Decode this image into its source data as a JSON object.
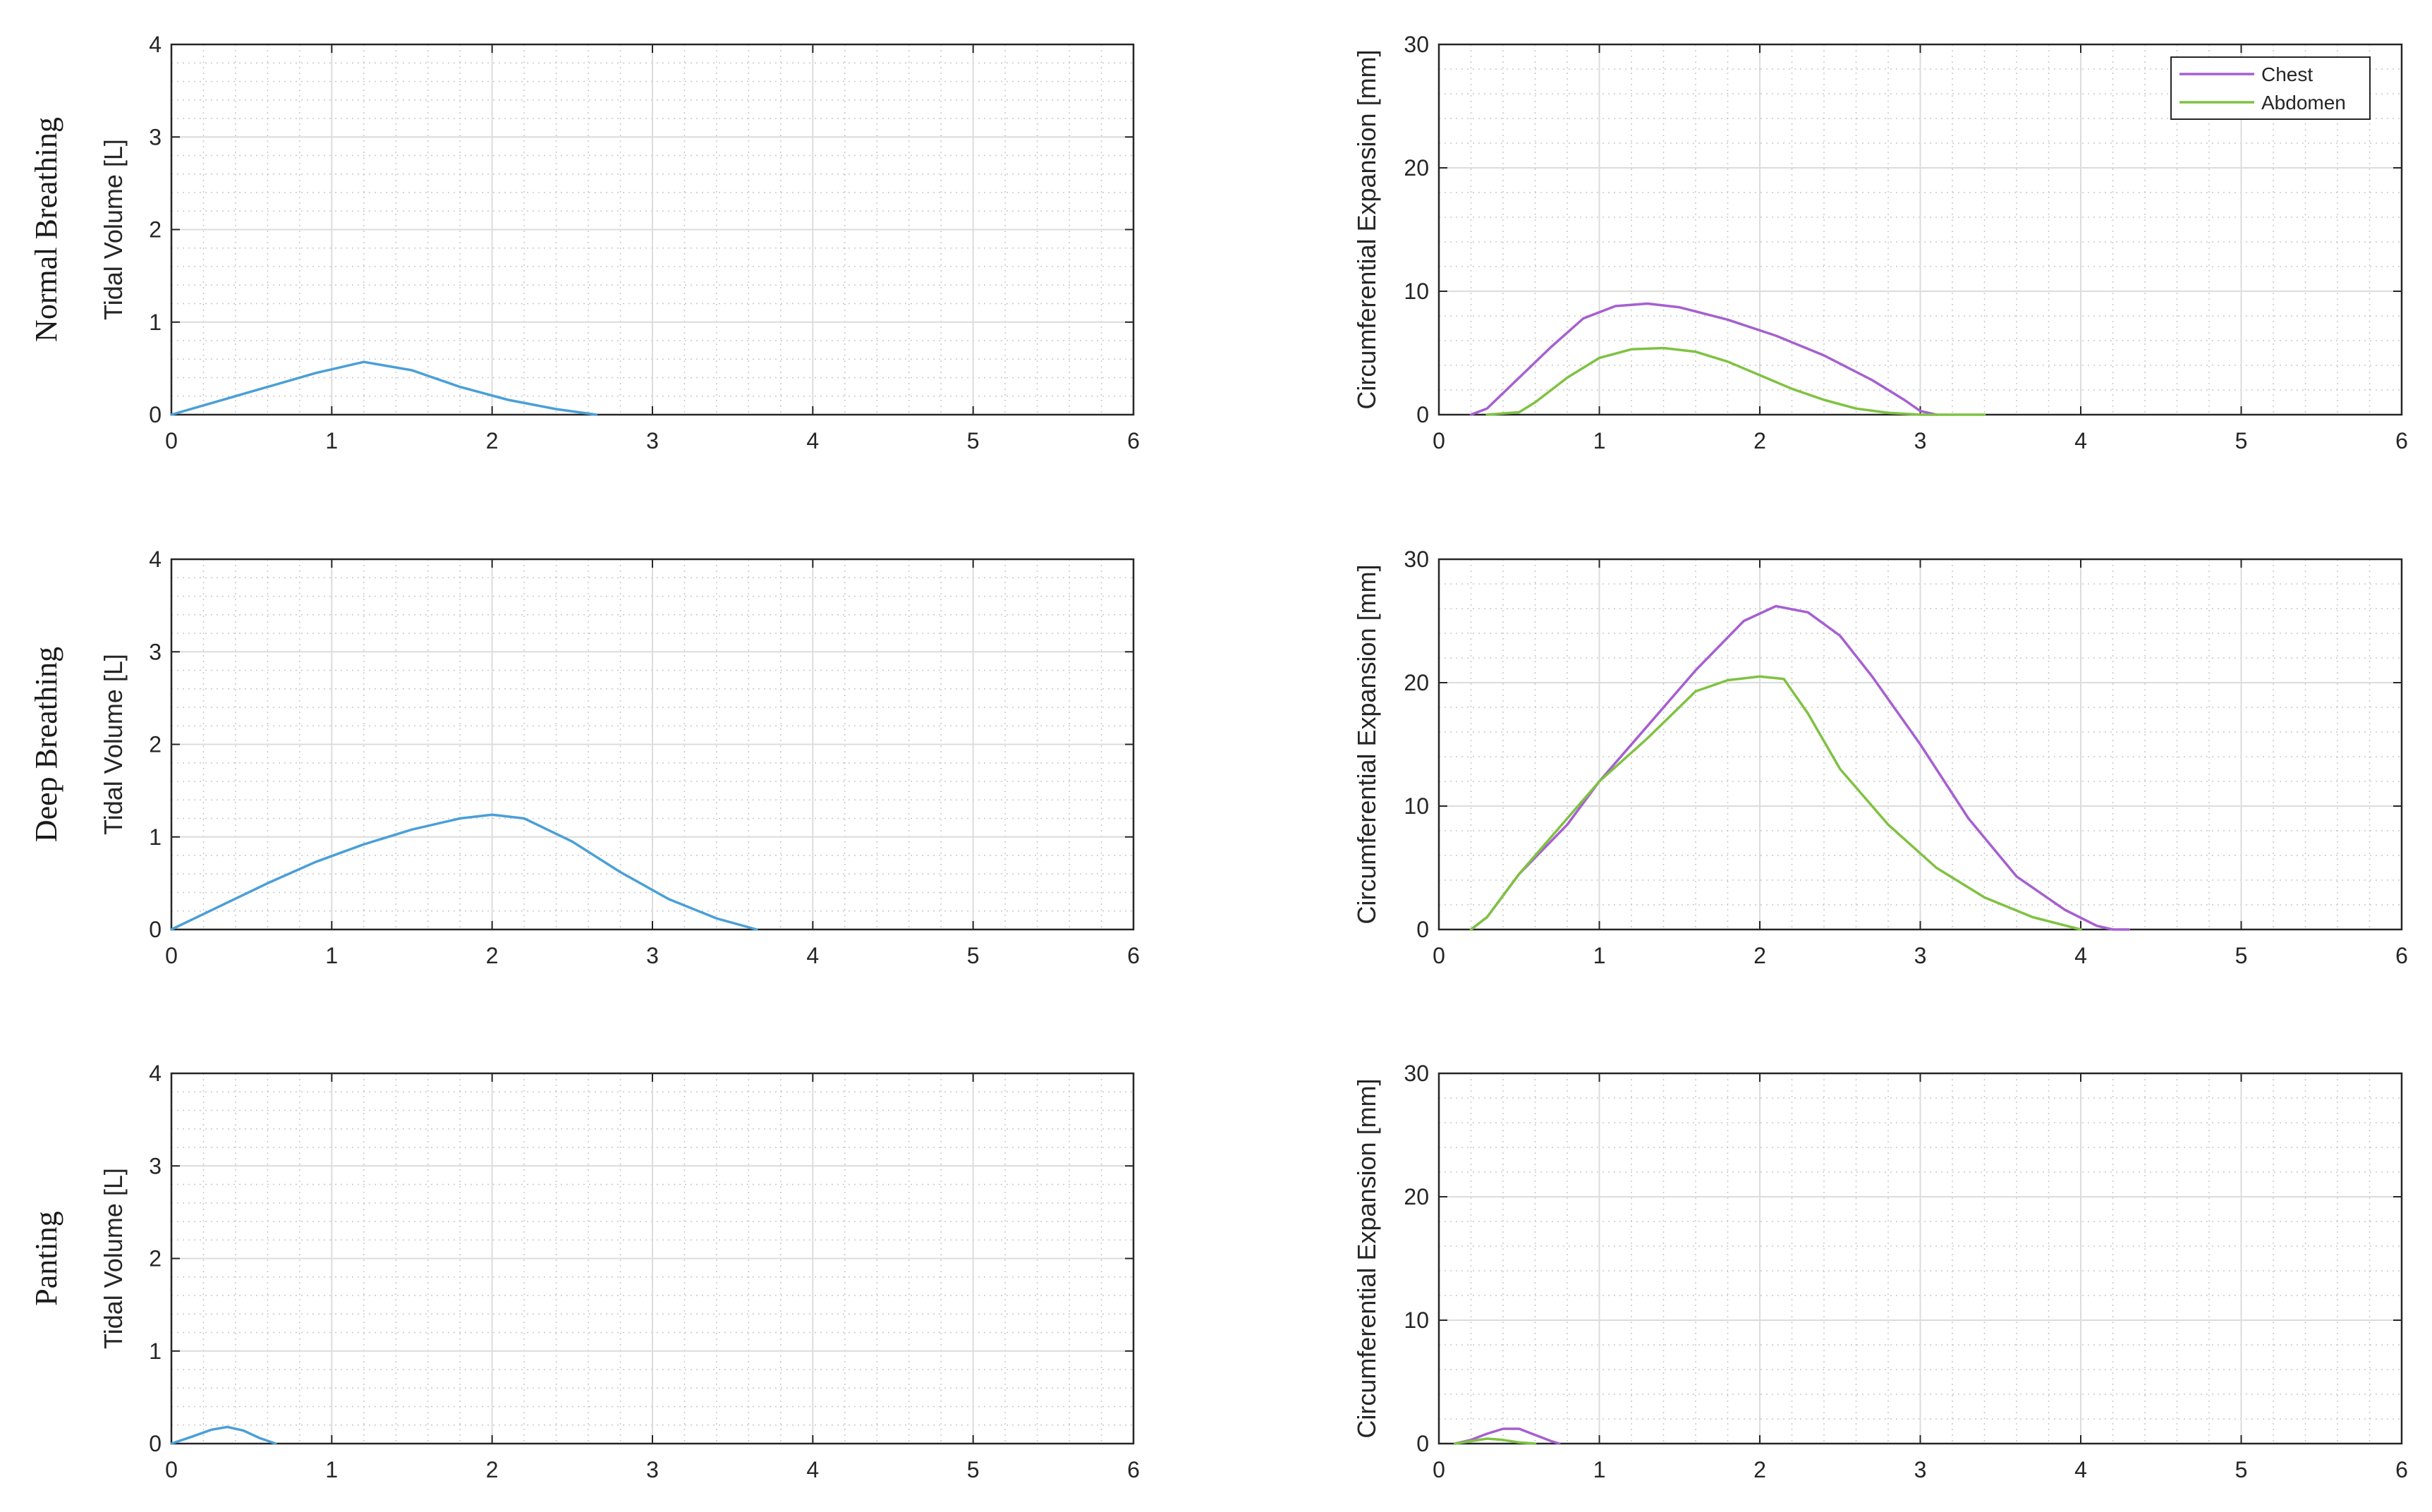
{
  "colors": {
    "tidal": "#4a9fd8",
    "chest": "#a65fd0",
    "abdomen": "#7fc242",
    "major_grid": "#dcdcdc",
    "minor_grid": "#c8c8c8",
    "axis": "#262626"
  },
  "row_labels": [
    "Normal Breathing",
    "Deep Breathing",
    "Panting"
  ],
  "chart_data": [
    {
      "type": "line",
      "row": 0,
      "col": 0,
      "ylabel": "Tidal Volume [L]",
      "xlim": [
        0,
        6
      ],
      "ylim": [
        0,
        4
      ],
      "xticks": [
        0,
        1,
        2,
        3,
        4,
        5,
        6
      ],
      "yticks": [
        0,
        1,
        2,
        3,
        4
      ],
      "grid": true,
      "minor_grid": true,
      "series": [
        {
          "color_key": "tidal",
          "x": [
            0,
            0.3,
            0.6,
            0.9,
            1.2,
            1.5,
            1.8,
            2.1,
            2.4,
            2.65
          ],
          "y": [
            0,
            0.15,
            0.3,
            0.45,
            0.57,
            0.48,
            0.3,
            0.16,
            0.06,
            0
          ]
        }
      ]
    },
    {
      "type": "line",
      "row": 0,
      "col": 1,
      "ylabel": "Circumferential Expansion [mm]",
      "xlim": [
        0,
        6
      ],
      "ylim": [
        0,
        30
      ],
      "xticks": [
        0,
        1,
        2,
        3,
        4,
        5,
        6
      ],
      "yticks": [
        0,
        10,
        20,
        30
      ],
      "grid": true,
      "minor_grid": true,
      "legend": {
        "position": "top-right",
        "entries": [
          "Chest",
          "Abdomen"
        ]
      },
      "series": [
        {
          "name": "Chest",
          "color_key": "chest",
          "x": [
            0.2,
            0.3,
            0.5,
            0.7,
            0.9,
            1.1,
            1.3,
            1.5,
            1.8,
            2.1,
            2.4,
            2.7,
            2.9,
            3.0,
            3.1
          ],
          "y": [
            0,
            0.5,
            3,
            5.5,
            7.8,
            8.8,
            9,
            8.7,
            7.7,
            6.4,
            4.8,
            2.8,
            1.2,
            0.3,
            0
          ]
        },
        {
          "name": "Abdomen",
          "color_key": "abdomen",
          "x": [
            0.3,
            0.5,
            0.6,
            0.8,
            1.0,
            1.2,
            1.4,
            1.6,
            1.8,
            2.0,
            2.2,
            2.4,
            2.6,
            2.8,
            3.0,
            3.4
          ],
          "y": [
            0,
            0.2,
            1,
            3,
            4.6,
            5.3,
            5.4,
            5.1,
            4.3,
            3.2,
            2.1,
            1.2,
            0.5,
            0.15,
            0,
            0
          ]
        }
      ]
    },
    {
      "type": "line",
      "row": 1,
      "col": 0,
      "ylabel": "Tidal Volume [L]",
      "xlim": [
        0,
        6
      ],
      "ylim": [
        0,
        4
      ],
      "xticks": [
        0,
        1,
        2,
        3,
        4,
        5,
        6
      ],
      "yticks": [
        0,
        1,
        2,
        3,
        4
      ],
      "grid": true,
      "minor_grid": true,
      "series": [
        {
          "color_key": "tidal",
          "x": [
            0,
            0.3,
            0.6,
            0.9,
            1.2,
            1.5,
            1.8,
            2.0,
            2.2,
            2.5,
            2.8,
            3.1,
            3.4,
            3.65
          ],
          "y": [
            0,
            0.25,
            0.5,
            0.73,
            0.92,
            1.08,
            1.2,
            1.24,
            1.2,
            0.95,
            0.62,
            0.33,
            0.12,
            0
          ]
        }
      ]
    },
    {
      "type": "line",
      "row": 1,
      "col": 1,
      "ylabel": "Circumferential Expansion [mm]",
      "xlim": [
        0,
        6
      ],
      "ylim": [
        0,
        30
      ],
      "xticks": [
        0,
        1,
        2,
        3,
        4,
        5,
        6
      ],
      "yticks": [
        0,
        10,
        20,
        30
      ],
      "grid": true,
      "minor_grid": true,
      "series": [
        {
          "name": "Chest",
          "color_key": "chest",
          "x": [
            0.2,
            0.3,
            0.5,
            0.8,
            1.0,
            1.3,
            1.6,
            1.9,
            2.1,
            2.3,
            2.5,
            2.7,
            3.0,
            3.3,
            3.6,
            3.9,
            4.1,
            4.2,
            4.3
          ],
          "y": [
            0,
            1,
            4.5,
            8.5,
            12,
            16.5,
            21,
            25,
            26.2,
            25.7,
            23.8,
            20.5,
            15,
            9,
            4.3,
            1.6,
            0.3,
            0,
            0
          ]
        },
        {
          "name": "Abdomen",
          "color_key": "abdomen",
          "x": [
            0.2,
            0.3,
            0.5,
            0.8,
            1.0,
            1.3,
            1.6,
            1.8,
            2.0,
            2.15,
            2.3,
            2.5,
            2.8,
            3.1,
            3.4,
            3.7,
            4.0
          ],
          "y": [
            0,
            1,
            4.5,
            9,
            12,
            15.5,
            19.3,
            20.2,
            20.5,
            20.3,
            17.5,
            13,
            8.5,
            5,
            2.6,
            1,
            0
          ]
        }
      ]
    },
    {
      "type": "line",
      "row": 2,
      "col": 0,
      "ylabel": "Tidal Volume [L]",
      "xlim": [
        0,
        6
      ],
      "ylim": [
        0,
        4
      ],
      "xticks": [
        0,
        1,
        2,
        3,
        4,
        5,
        6
      ],
      "yticks": [
        0,
        1,
        2,
        3,
        4
      ],
      "grid": true,
      "minor_grid": true,
      "series": [
        {
          "color_key": "tidal",
          "x": [
            0,
            0.12,
            0.25,
            0.35,
            0.45,
            0.55,
            0.65
          ],
          "y": [
            0,
            0.07,
            0.15,
            0.18,
            0.14,
            0.06,
            0
          ]
        }
      ]
    },
    {
      "type": "line",
      "row": 2,
      "col": 1,
      "ylabel": "Circumferential Expansion [mm]",
      "xlim": [
        0,
        6
      ],
      "ylim": [
        0,
        30
      ],
      "xticks": [
        0,
        1,
        2,
        3,
        4,
        5,
        6
      ],
      "yticks": [
        0,
        10,
        20,
        30
      ],
      "grid": true,
      "minor_grid": true,
      "series": [
        {
          "name": "Chest",
          "color_key": "chest",
          "x": [
            0.1,
            0.2,
            0.3,
            0.4,
            0.5,
            0.6,
            0.7,
            0.75
          ],
          "y": [
            0,
            0.3,
            0.8,
            1.2,
            1.2,
            0.7,
            0.2,
            0
          ]
        },
        {
          "name": "Abdomen",
          "color_key": "abdomen",
          "x": [
            0.1,
            0.2,
            0.3,
            0.4,
            0.5,
            0.6
          ],
          "y": [
            0,
            0.2,
            0.4,
            0.3,
            0.1,
            0
          ]
        }
      ]
    }
  ]
}
